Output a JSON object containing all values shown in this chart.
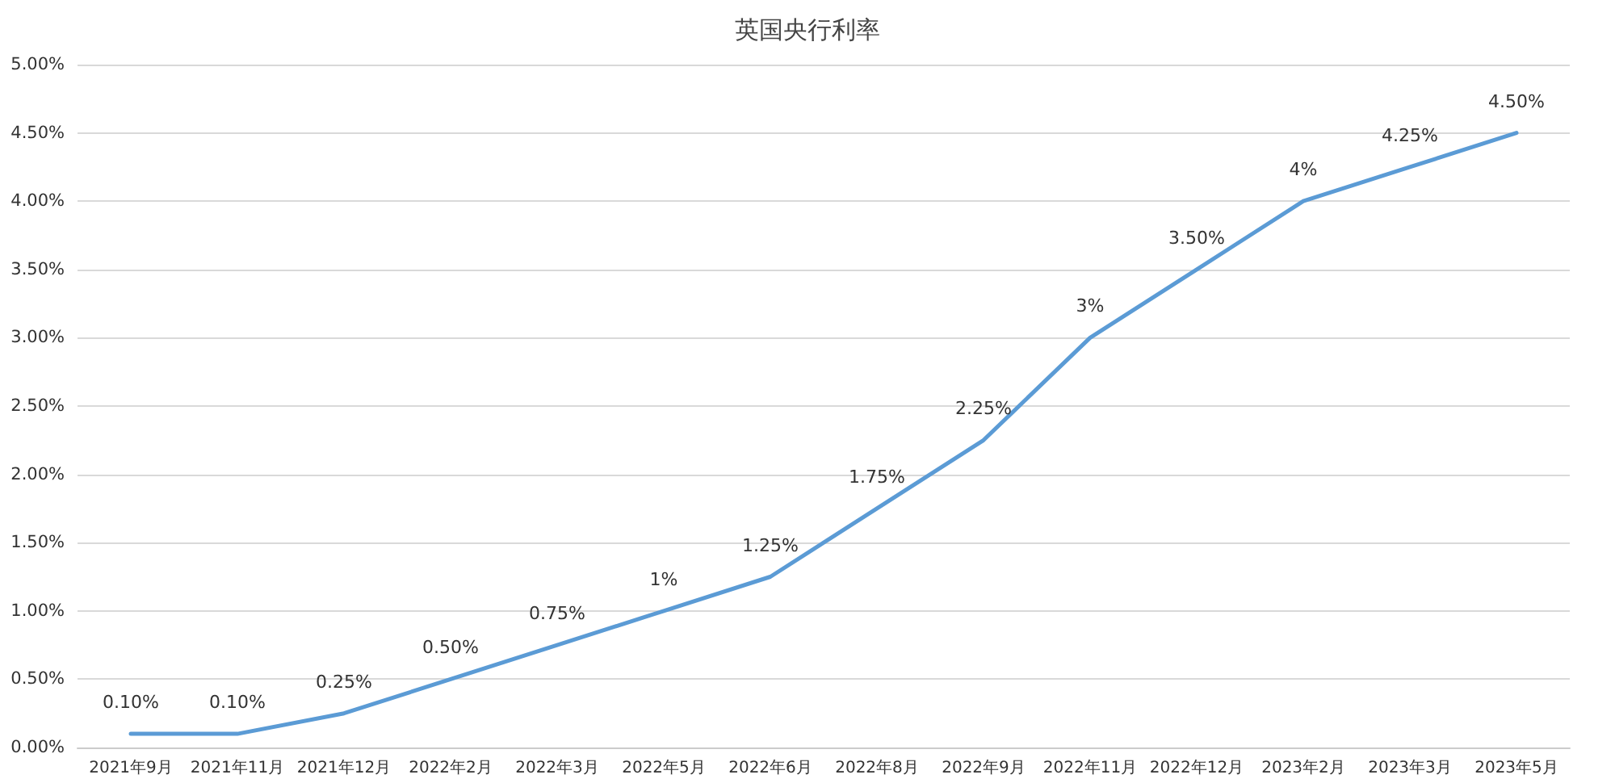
{
  "chart_data": {
    "type": "line",
    "title": "英国央行利率",
    "categories": [
      "2021年9月",
      "2021年11月",
      "2021年12月",
      "2022年2月",
      "2022年3月",
      "2022年5月",
      "2022年6月",
      "2022年8月",
      "2022年9月",
      "2022年11月",
      "2022年12月",
      "2023年2月",
      "2023年3月",
      "2023年5月"
    ],
    "series": [
      {
        "color": "#5b9bd5",
        "values": [
          0.1,
          0.1,
          0.25,
          0.5,
          0.75,
          1,
          1.25,
          1.75,
          2.25,
          3,
          3.5,
          4,
          4.25,
          4.5
        ],
        "value_labels": [
          "0.10%",
          "0.10%",
          "0.25%",
          "0.50%",
          "0.75%",
          "1%",
          "1.25%",
          "1.75%",
          "2.25%",
          "3%",
          "3.50%",
          "4%",
          "4.25%",
          "4.50%"
        ]
      }
    ],
    "ylim": [
      0,
      5
    ],
    "yticks": [
      {
        "value": 0,
        "label": "0.00%"
      },
      {
        "value": 0.5,
        "label": "0.50%"
      },
      {
        "value": 1,
        "label": "1.00%"
      },
      {
        "value": 1.5,
        "label": "1.50%"
      },
      {
        "value": 2,
        "label": "2.00%"
      },
      {
        "value": 2.5,
        "label": "2.50%"
      },
      {
        "value": 3,
        "label": "3.00%"
      },
      {
        "value": 3.5,
        "label": "3.50%"
      },
      {
        "value": 4,
        "label": "4.00%"
      },
      {
        "value": 4.5,
        "label": "4.50%"
      },
      {
        "value": 5,
        "label": "5.00%"
      }
    ],
    "grid": "y",
    "marker": "none",
    "line_style": "solid"
  }
}
